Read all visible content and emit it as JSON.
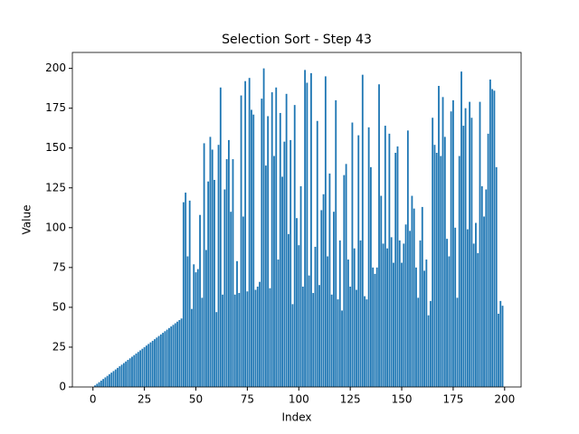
{
  "chart_data": {
    "type": "bar",
    "title": "Selection Sort - Step 43",
    "xlabel": "Index",
    "ylabel": "Value",
    "color": "#1f77b4",
    "x": [
      0,
      1,
      2,
      3,
      4,
      5,
      6,
      7,
      8,
      9,
      10,
      11,
      12,
      13,
      14,
      15,
      16,
      17,
      18,
      19,
      20,
      21,
      22,
      23,
      24,
      25,
      26,
      27,
      28,
      29,
      30,
      31,
      32,
      33,
      34,
      35,
      36,
      37,
      38,
      39,
      40,
      41,
      42,
      43,
      44,
      45,
      46,
      47,
      48,
      49,
      50,
      51,
      52,
      53,
      54,
      55,
      56,
      57,
      58,
      59,
      60,
      61,
      62,
      63,
      64,
      65,
      66,
      67,
      68,
      69,
      70,
      71,
      72,
      73,
      74,
      75,
      76,
      77,
      78,
      79,
      80,
      81,
      82,
      83,
      84,
      85,
      86,
      87,
      88,
      89,
      90,
      91,
      92,
      93,
      94,
      95,
      96,
      97,
      98,
      99,
      100,
      101,
      102,
      103,
      104,
      105,
      106,
      107,
      108,
      109,
      110,
      111,
      112,
      113,
      114,
      115,
      116,
      117,
      118,
      119,
      120,
      121,
      122,
      123,
      124,
      125,
      126,
      127,
      128,
      129,
      130,
      131,
      132,
      133,
      134,
      135,
      136,
      137,
      138,
      139,
      140,
      141,
      142,
      143,
      144,
      145,
      146,
      147,
      148,
      149,
      150,
      151,
      152,
      153,
      154,
      155,
      156,
      157,
      158,
      159,
      160,
      161,
      162,
      163,
      164,
      165,
      166,
      167,
      168,
      169,
      170,
      171,
      172,
      173,
      174,
      175,
      176,
      177,
      178,
      179,
      180,
      181,
      182,
      183,
      184,
      185,
      186,
      187,
      188,
      189,
      190,
      191,
      192,
      193,
      194,
      195,
      196,
      197,
      198,
      199
    ],
    "values": [
      0,
      1,
      2,
      3,
      4,
      5,
      6,
      7,
      8,
      9,
      10,
      11,
      12,
      13,
      14,
      15,
      16,
      17,
      18,
      19,
      20,
      21,
      22,
      23,
      24,
      25,
      26,
      27,
      28,
      29,
      30,
      31,
      32,
      33,
      34,
      35,
      36,
      37,
      38,
      39,
      40,
      41,
      42,
      43,
      116,
      122,
      82,
      117,
      49,
      77,
      72,
      74,
      108,
      56,
      153,
      86,
      129,
      157,
      149,
      130,
      47,
      152,
      188,
      58,
      124,
      143,
      155,
      110,
      143,
      58,
      79,
      59,
      183,
      107,
      192,
      60,
      194,
      174,
      171,
      61,
      63,
      66,
      181,
      200,
      139,
      170,
      62,
      185,
      145,
      188,
      80,
      172,
      132,
      154,
      184,
      96,
      155,
      52,
      177,
      106,
      89,
      126,
      63,
      199,
      191,
      70,
      197,
      59,
      88,
      167,
      64,
      111,
      121,
      195,
      82,
      134,
      58,
      110,
      180,
      55,
      92,
      48,
      133,
      140,
      80,
      63,
      166,
      87,
      61,
      158,
      92,
      196,
      57,
      55,
      163,
      138,
      75,
      71,
      75,
      190,
      120,
      90,
      164,
      87,
      159,
      94,
      78,
      147,
      151,
      92,
      78,
      90,
      102,
      161,
      98,
      120,
      112,
      75,
      56,
      92,
      113,
      73,
      80,
      45,
      54,
      169,
      152,
      147,
      189,
      145,
      182,
      157,
      93,
      82,
      173,
      180,
      100,
      56,
      145,
      198,
      164,
      175,
      99,
      179,
      169,
      90,
      103,
      84,
      179,
      126,
      107,
      124,
      159,
      193,
      187,
      186,
      138,
      46,
      54,
      51
    ],
    "xlim": [
      -10,
      208
    ],
    "ylim": [
      0,
      210
    ],
    "xticks": [
      0,
      25,
      50,
      75,
      100,
      125,
      150,
      175,
      200
    ],
    "yticks": [
      0,
      25,
      50,
      75,
      100,
      125,
      150,
      175,
      200
    ]
  }
}
